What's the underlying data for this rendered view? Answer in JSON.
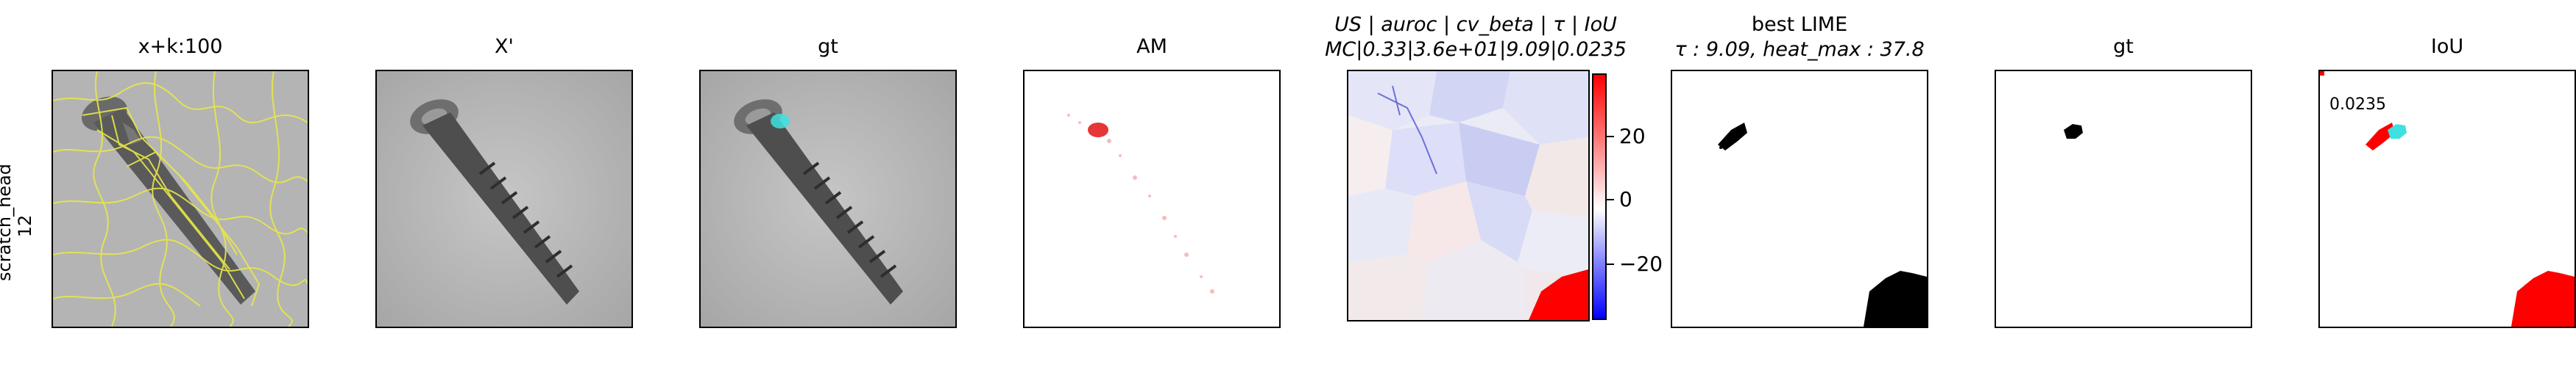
{
  "row_label": {
    "line1": "scratch_head",
    "line2": "12"
  },
  "panels": [
    {
      "title": "x+k:100"
    },
    {
      "title": "X'"
    },
    {
      "title": "gt"
    },
    {
      "title": "AM"
    },
    {
      "title_line1": "US | auroc | cv_beta | τ | IoU",
      "title_line2": "MC|0.33|3.6e+01|9.09|0.0235"
    },
    {
      "title_line1": "best LIME",
      "title_line2": "τ : 9.09, heat_max : 37.8"
    },
    {
      "title": "gt"
    },
    {
      "title": "IoU"
    }
  ],
  "colorbar": {
    "ticks": [
      "20",
      "0",
      "−20"
    ]
  },
  "iou_value": "0.0235",
  "colors": {
    "segment_outline": "#e8e84a",
    "gt_mask": "#3fe0e0",
    "heat_positive": "#ff0000",
    "heat_negative": "#0000ff"
  }
}
